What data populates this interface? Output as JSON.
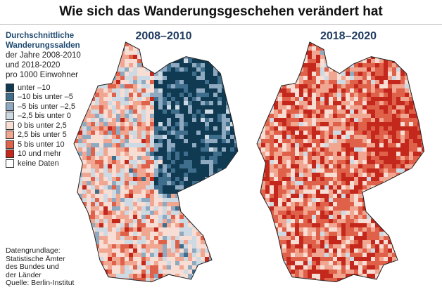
{
  "header": {
    "title": "Wie sich das Wanderungsgeschehen verändert hat"
  },
  "legend": {
    "title": [
      "Durchschnittliche",
      "Wanderungssalden"
    ],
    "subtitle": [
      "der Jahre 2008-2010",
      "und 2018-2020",
      "pro 1000 Einwohner"
    ],
    "items": [
      {
        "label": "unter –10",
        "color": "#0f3a52"
      },
      {
        "label": "–10 bis unter –5",
        "color": "#3f6d8c"
      },
      {
        "label": "–5 bis unter –2,5",
        "color": "#8faac0"
      },
      {
        "label": "–2,5 bis unter 0",
        "color": "#cdd9e3"
      },
      {
        "label": "0 bis unter 2,5",
        "color": "#f7ddd3"
      },
      {
        "label": "2,5 bis unter 5",
        "color": "#f0a690"
      },
      {
        "label": "5 bis unter 10",
        "color": "#e0614a"
      },
      {
        "label": "10 und mehr",
        "color": "#c4281c"
      },
      {
        "label": "keine Daten",
        "color": "#ffffff"
      }
    ]
  },
  "maps": [
    {
      "title": "2008–2010"
    },
    {
      "title": "2018–2020"
    }
  ],
  "source": {
    "lines": [
      "Datengrundlage:",
      "Statistische Ämter",
      "des Bundes und",
      "der Länder",
      "Quelle: Berlin-Institut"
    ]
  }
}
